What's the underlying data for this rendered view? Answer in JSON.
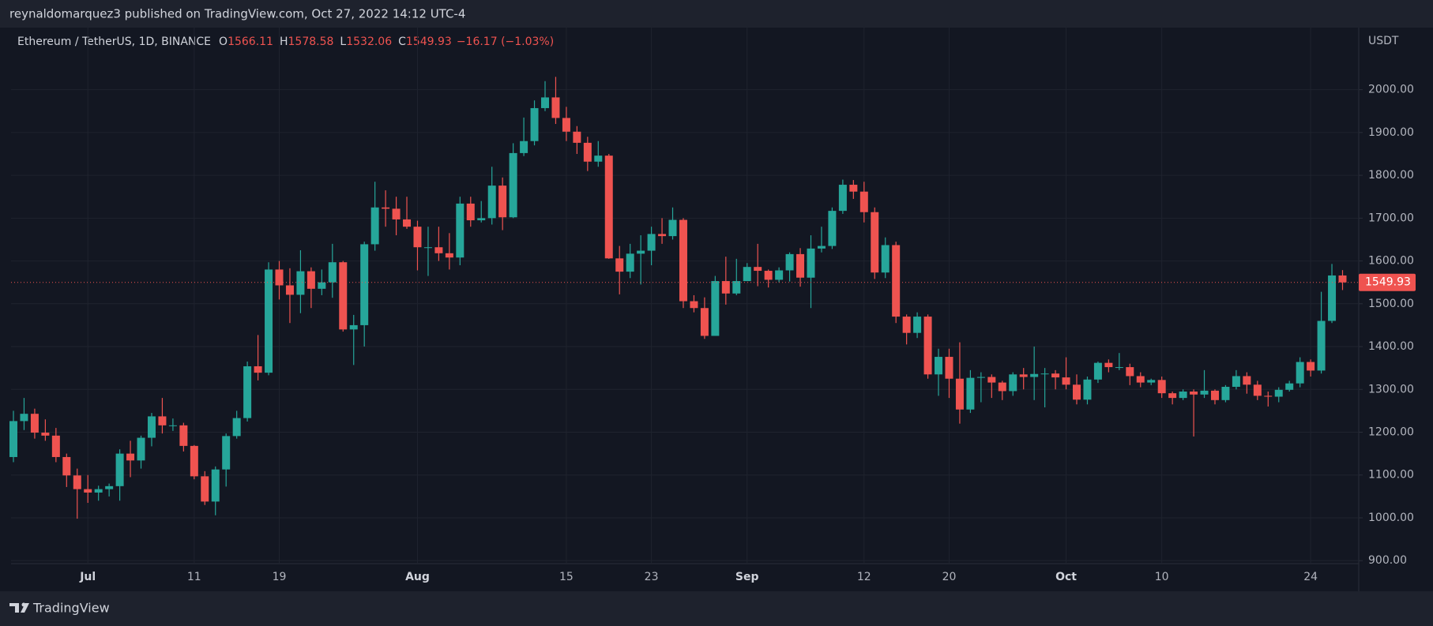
{
  "header": {
    "publisher": "reynaldomarquez3 published on TradingView.com, Oct 27, 2022 14:12 UTC-4"
  },
  "footer": {
    "brand": "TradingView"
  },
  "chart_data": {
    "type": "candlestick",
    "title": "Ethereum / TetherUS, 1D, BINANCE",
    "ohlc_labels": [
      "O",
      "H",
      "L",
      "C"
    ],
    "change": "−16.17 (−1.03%)",
    "y_axis_label": "USDT",
    "up_color": "#26a69a",
    "down_color": "#ef5350",
    "grid": true,
    "ylim": [
      893,
      2145
    ],
    "yticks": [
      {
        "value": 900,
        "label": "900.00"
      },
      {
        "value": 1000,
        "label": "1000.00"
      },
      {
        "value": 1100,
        "label": "1100.00"
      },
      {
        "value": 1200,
        "label": "1200.00"
      },
      {
        "value": 1300,
        "label": "1300.00"
      },
      {
        "value": 1400,
        "label": "1400.00"
      },
      {
        "value": 1500,
        "label": "1500.00"
      },
      {
        "value": 1600,
        "label": "1600.00"
      },
      {
        "value": 1700,
        "label": "1700.00"
      },
      {
        "value": 1800,
        "label": "1800.00"
      },
      {
        "value": 1900,
        "label": "1900.00"
      },
      {
        "value": 2000,
        "label": "2000.00"
      }
    ],
    "categories": [
      null,
      null,
      null,
      null,
      null,
      null,
      null,
      "Jul",
      null,
      null,
      null,
      null,
      null,
      null,
      null,
      null,
      null,
      "11",
      null,
      null,
      null,
      null,
      null,
      null,
      null,
      "19",
      null,
      null,
      null,
      null,
      null,
      null,
      null,
      null,
      null,
      null,
      null,
      null,
      "Aug",
      null,
      null,
      null,
      null,
      null,
      null,
      null,
      null,
      null,
      null,
      null,
      null,
      null,
      "15",
      null,
      null,
      null,
      null,
      null,
      null,
      null,
      "23",
      null,
      null,
      null,
      null,
      null,
      null,
      null,
      null,
      "Sep",
      null,
      null,
      null,
      null,
      null,
      null,
      null,
      null,
      null,
      null,
      "12",
      null,
      null,
      null,
      null,
      null,
      null,
      null,
      "20",
      null,
      null,
      null,
      null,
      null,
      null,
      null,
      null,
      null,
      null,
      "Oct",
      null,
      null,
      null,
      null,
      null,
      null,
      null,
      null,
      "10",
      null,
      null,
      null,
      null,
      null,
      null,
      null,
      null,
      null,
      null,
      null,
      null,
      null,
      "24",
      null,
      null,
      null
    ],
    "open": [
      1142,
      1226,
      1243,
      1199,
      1192,
      1142,
      1099,
      1067,
      1059,
      1067,
      1074,
      1150,
      1134,
      1187,
      1237,
      1216,
      1216,
      1168,
      1097,
      1038,
      1113,
      1191,
      1233,
      1354,
      1339,
      1580,
      1543,
      1521,
      1576,
      1535,
      1550,
      1597,
      1440,
      1450,
      1639,
      1725,
      1722,
      1697,
      1680,
      1632,
      1632,
      1618,
      1608,
      1734,
      1695,
      1700,
      1776,
      1702,
      1852,
      1880,
      1957,
      1982,
      1934,
      1902,
      1876,
      1832,
      1846,
      1606,
      1575,
      1617,
      1624,
      1663,
      1658,
      1696,
      1506,
      1490,
      1425,
      1553,
      1524,
      1553,
      1586,
      1577,
      1556,
      1578,
      1616,
      1561,
      1629,
      1635,
      1717,
      1778,
      1762,
      1714,
      1573,
      1637,
      1470,
      1432,
      1470,
      1335,
      1376,
      1325,
      1253,
      1327,
      1329,
      1316,
      1296,
      1335,
      1329,
      1336,
      1337,
      1328,
      1311,
      1276,
      1323,
      1362,
      1352,
      1352,
      1331,
      1316,
      1322,
      1291,
      1280,
      1295,
      1288,
      1297,
      1275,
      1306,
      1331,
      1311,
      1285,
      1283,
      1299,
      1314,
      1364,
      1344,
      1460,
      1566.11
    ],
    "high": [
      1250,
      1280,
      1255,
      1230,
      1210,
      1150,
      1115,
      1100,
      1075,
      1080,
      1160,
      1180,
      1192,
      1245,
      1280,
      1232,
      1222,
      1170,
      1109,
      1120,
      1197,
      1250,
      1365,
      1427,
      1597,
      1600,
      1583,
      1625,
      1585,
      1580,
      1640,
      1600,
      1474,
      1645,
      1785,
      1765,
      1750,
      1750,
      1694,
      1680,
      1680,
      1665,
      1750,
      1750,
      1740,
      1820,
      1795,
      1875,
      1935,
      1975,
      2020,
      2030,
      1960,
      1915,
      1890,
      1880,
      1850,
      1635,
      1640,
      1660,
      1680,
      1700,
      1725,
      1700,
      1520,
      1515,
      1565,
      1610,
      1605,
      1595,
      1640,
      1580,
      1585,
      1620,
      1630,
      1660,
      1680,
      1725,
      1790,
      1789,
      1785,
      1725,
      1655,
      1645,
      1475,
      1480,
      1475,
      1395,
      1395,
      1410,
      1345,
      1340,
      1335,
      1320,
      1340,
      1350,
      1400,
      1350,
      1345,
      1375,
      1335,
      1330,
      1365,
      1370,
      1385,
      1360,
      1340,
      1325,
      1330,
      1295,
      1300,
      1300,
      1345,
      1300,
      1310,
      1345,
      1340,
      1320,
      1295,
      1305,
      1320,
      1375,
      1370,
      1528,
      1593,
      1578.58
    ],
    "low": [
      1130,
      1205,
      1185,
      1180,
      1130,
      1072,
      998,
      1035,
      1040,
      1050,
      1040,
      1095,
      1115,
      1167,
      1197,
      1203,
      1155,
      1090,
      1030,
      1006,
      1073,
      1185,
      1225,
      1321,
      1333,
      1510,
      1455,
      1478,
      1490,
      1520,
      1514,
      1435,
      1357,
      1400,
      1624,
      1680,
      1660,
      1675,
      1578,
      1565,
      1600,
      1580,
      1590,
      1680,
      1690,
      1685,
      1672,
      1700,
      1845,
      1870,
      1950,
      1920,
      1880,
      1850,
      1810,
      1820,
      1605,
      1522,
      1560,
      1545,
      1590,
      1640,
      1650,
      1490,
      1480,
      1418,
      1425,
      1498,
      1520,
      1560,
      1541,
      1538,
      1550,
      1552,
      1540,
      1490,
      1620,
      1628,
      1710,
      1745,
      1690,
      1558,
      1560,
      1455,
      1405,
      1420,
      1325,
      1285,
      1280,
      1220,
      1245,
      1270,
      1280,
      1275,
      1285,
      1300,
      1275,
      1258,
      1300,
      1300,
      1265,
      1265,
      1315,
      1340,
      1345,
      1310,
      1305,
      1310,
      1280,
      1265,
      1275,
      1190,
      1280,
      1265,
      1270,
      1300,
      1290,
      1275,
      1260,
      1270,
      1295,
      1305,
      1330,
      1337,
      1455,
      1532.06
    ],
    "close": [
      1226,
      1243,
      1199,
      1192,
      1142,
      1099,
      1067,
      1059,
      1067,
      1074,
      1150,
      1134,
      1187,
      1237,
      1216,
      1216,
      1168,
      1097,
      1038,
      1113,
      1191,
      1233,
      1354,
      1339,
      1580,
      1543,
      1521,
      1576,
      1535,
      1550,
      1597,
      1440,
      1450,
      1639,
      1725,
      1722,
      1697,
      1680,
      1632,
      1632,
      1618,
      1608,
      1734,
      1695,
      1700,
      1776,
      1702,
      1852,
      1880,
      1957,
      1982,
      1934,
      1902,
      1876,
      1832,
      1846,
      1606,
      1575,
      1617,
      1624,
      1663,
      1658,
      1696,
      1506,
      1490,
      1425,
      1553,
      1524,
      1553,
      1586,
      1577,
      1556,
      1578,
      1616,
      1561,
      1629,
      1635,
      1717,
      1778,
      1762,
      1714,
      1573,
      1637,
      1470,
      1432,
      1470,
      1335,
      1376,
      1325,
      1253,
      1327,
      1329,
      1316,
      1296,
      1335,
      1329,
      1336,
      1337,
      1328,
      1311,
      1276,
      1323,
      1362,
      1352,
      1352,
      1331,
      1316,
      1322,
      1291,
      1280,
      1295,
      1288,
      1297,
      1275,
      1306,
      1331,
      1311,
      1285,
      1283,
      1299,
      1314,
      1364,
      1344,
      1460,
      1566.11,
      1549.93
    ]
  }
}
